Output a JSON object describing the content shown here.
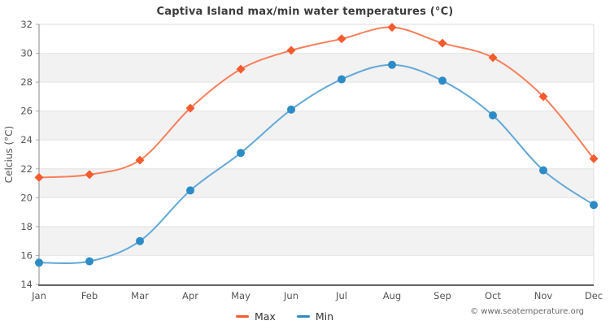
{
  "chart_data": {
    "type": "line",
    "title": "Captiva Island max/min water temperatures (°C)",
    "ylabel": "Celcius (°C)",
    "xlabel": "",
    "categories": [
      "Jan",
      "Feb",
      "Mar",
      "Apr",
      "May",
      "Jun",
      "Jul",
      "Aug",
      "Sep",
      "Oct",
      "Nov",
      "Dec"
    ],
    "series": [
      {
        "name": "Max",
        "marker": "diamond",
        "color": "#f45b2e",
        "line_color": "#f87f5c",
        "values": [
          21.4,
          21.6,
          22.6,
          26.2,
          28.9,
          30.2,
          31.0,
          31.8,
          30.7,
          29.7,
          27.0,
          22.7
        ]
      },
      {
        "name": "Min",
        "marker": "circle",
        "color": "#2d8cc5",
        "line_color": "#64a9d8",
        "values": [
          15.5,
          15.6,
          17.0,
          20.5,
          23.1,
          26.1,
          28.2,
          29.2,
          28.1,
          25.7,
          21.9,
          19.5
        ]
      }
    ],
    "ylim": [
      14,
      32
    ],
    "ytick_step": 2,
    "grid": true,
    "band_color": "#f2f2f2",
    "gridline_color": "#e4e4e4",
    "axis_text_color": "#555555",
    "legend_position": "bottom"
  },
  "footer": {
    "attribution": "© www.seatemperature.org"
  }
}
